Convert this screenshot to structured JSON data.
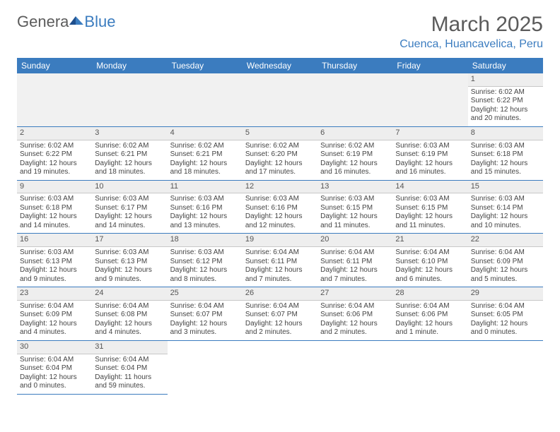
{
  "brand": {
    "part1": "Genera",
    "part2": "Blue"
  },
  "title": {
    "month": "March 2025",
    "location": "Cuenca, Huancavelica, Peru"
  },
  "colors": {
    "accent": "#3b7cbf",
    "header_bg": "#3b7cbf",
    "header_text": "#ffffff",
    "day_bg": "#eeeeee",
    "body_bg": "#ffffff"
  },
  "headers": [
    "Sunday",
    "Monday",
    "Tuesday",
    "Wednesday",
    "Thursday",
    "Friday",
    "Saturday"
  ],
  "weeks": [
    [
      null,
      null,
      null,
      null,
      null,
      null,
      {
        "n": "1",
        "sr": "Sunrise: 6:02 AM",
        "ss": "Sunset: 6:22 PM",
        "d1": "Daylight: 12 hours",
        "d2": "and 20 minutes."
      }
    ],
    [
      {
        "n": "2",
        "sr": "Sunrise: 6:02 AM",
        "ss": "Sunset: 6:22 PM",
        "d1": "Daylight: 12 hours",
        "d2": "and 19 minutes."
      },
      {
        "n": "3",
        "sr": "Sunrise: 6:02 AM",
        "ss": "Sunset: 6:21 PM",
        "d1": "Daylight: 12 hours",
        "d2": "and 18 minutes."
      },
      {
        "n": "4",
        "sr": "Sunrise: 6:02 AM",
        "ss": "Sunset: 6:21 PM",
        "d1": "Daylight: 12 hours",
        "d2": "and 18 minutes."
      },
      {
        "n": "5",
        "sr": "Sunrise: 6:02 AM",
        "ss": "Sunset: 6:20 PM",
        "d1": "Daylight: 12 hours",
        "d2": "and 17 minutes."
      },
      {
        "n": "6",
        "sr": "Sunrise: 6:02 AM",
        "ss": "Sunset: 6:19 PM",
        "d1": "Daylight: 12 hours",
        "d2": "and 16 minutes."
      },
      {
        "n": "7",
        "sr": "Sunrise: 6:03 AM",
        "ss": "Sunset: 6:19 PM",
        "d1": "Daylight: 12 hours",
        "d2": "and 16 minutes."
      },
      {
        "n": "8",
        "sr": "Sunrise: 6:03 AM",
        "ss": "Sunset: 6:18 PM",
        "d1": "Daylight: 12 hours",
        "d2": "and 15 minutes."
      }
    ],
    [
      {
        "n": "9",
        "sr": "Sunrise: 6:03 AM",
        "ss": "Sunset: 6:18 PM",
        "d1": "Daylight: 12 hours",
        "d2": "and 14 minutes."
      },
      {
        "n": "10",
        "sr": "Sunrise: 6:03 AM",
        "ss": "Sunset: 6:17 PM",
        "d1": "Daylight: 12 hours",
        "d2": "and 14 minutes."
      },
      {
        "n": "11",
        "sr": "Sunrise: 6:03 AM",
        "ss": "Sunset: 6:16 PM",
        "d1": "Daylight: 12 hours",
        "d2": "and 13 minutes."
      },
      {
        "n": "12",
        "sr": "Sunrise: 6:03 AM",
        "ss": "Sunset: 6:16 PM",
        "d1": "Daylight: 12 hours",
        "d2": "and 12 minutes."
      },
      {
        "n": "13",
        "sr": "Sunrise: 6:03 AM",
        "ss": "Sunset: 6:15 PM",
        "d1": "Daylight: 12 hours",
        "d2": "and 11 minutes."
      },
      {
        "n": "14",
        "sr": "Sunrise: 6:03 AM",
        "ss": "Sunset: 6:15 PM",
        "d1": "Daylight: 12 hours",
        "d2": "and 11 minutes."
      },
      {
        "n": "15",
        "sr": "Sunrise: 6:03 AM",
        "ss": "Sunset: 6:14 PM",
        "d1": "Daylight: 12 hours",
        "d2": "and 10 minutes."
      }
    ],
    [
      {
        "n": "16",
        "sr": "Sunrise: 6:03 AM",
        "ss": "Sunset: 6:13 PM",
        "d1": "Daylight: 12 hours",
        "d2": "and 9 minutes."
      },
      {
        "n": "17",
        "sr": "Sunrise: 6:03 AM",
        "ss": "Sunset: 6:13 PM",
        "d1": "Daylight: 12 hours",
        "d2": "and 9 minutes."
      },
      {
        "n": "18",
        "sr": "Sunrise: 6:03 AM",
        "ss": "Sunset: 6:12 PM",
        "d1": "Daylight: 12 hours",
        "d2": "and 8 minutes."
      },
      {
        "n": "19",
        "sr": "Sunrise: 6:04 AM",
        "ss": "Sunset: 6:11 PM",
        "d1": "Daylight: 12 hours",
        "d2": "and 7 minutes."
      },
      {
        "n": "20",
        "sr": "Sunrise: 6:04 AM",
        "ss": "Sunset: 6:11 PM",
        "d1": "Daylight: 12 hours",
        "d2": "and 7 minutes."
      },
      {
        "n": "21",
        "sr": "Sunrise: 6:04 AM",
        "ss": "Sunset: 6:10 PM",
        "d1": "Daylight: 12 hours",
        "d2": "and 6 minutes."
      },
      {
        "n": "22",
        "sr": "Sunrise: 6:04 AM",
        "ss": "Sunset: 6:09 PM",
        "d1": "Daylight: 12 hours",
        "d2": "and 5 minutes."
      }
    ],
    [
      {
        "n": "23",
        "sr": "Sunrise: 6:04 AM",
        "ss": "Sunset: 6:09 PM",
        "d1": "Daylight: 12 hours",
        "d2": "and 4 minutes."
      },
      {
        "n": "24",
        "sr": "Sunrise: 6:04 AM",
        "ss": "Sunset: 6:08 PM",
        "d1": "Daylight: 12 hours",
        "d2": "and 4 minutes."
      },
      {
        "n": "25",
        "sr": "Sunrise: 6:04 AM",
        "ss": "Sunset: 6:07 PM",
        "d1": "Daylight: 12 hours",
        "d2": "and 3 minutes."
      },
      {
        "n": "26",
        "sr": "Sunrise: 6:04 AM",
        "ss": "Sunset: 6:07 PM",
        "d1": "Daylight: 12 hours",
        "d2": "and 2 minutes."
      },
      {
        "n": "27",
        "sr": "Sunrise: 6:04 AM",
        "ss": "Sunset: 6:06 PM",
        "d1": "Daylight: 12 hours",
        "d2": "and 2 minutes."
      },
      {
        "n": "28",
        "sr": "Sunrise: 6:04 AM",
        "ss": "Sunset: 6:06 PM",
        "d1": "Daylight: 12 hours",
        "d2": "and 1 minute."
      },
      {
        "n": "29",
        "sr": "Sunrise: 6:04 AM",
        "ss": "Sunset: 6:05 PM",
        "d1": "Daylight: 12 hours",
        "d2": "and 0 minutes."
      }
    ],
    [
      {
        "n": "30",
        "sr": "Sunrise: 6:04 AM",
        "ss": "Sunset: 6:04 PM",
        "d1": "Daylight: 12 hours",
        "d2": "and 0 minutes."
      },
      {
        "n": "31",
        "sr": "Sunrise: 6:04 AM",
        "ss": "Sunset: 6:04 PM",
        "d1": "Daylight: 11 hours",
        "d2": "and 59 minutes."
      },
      null,
      null,
      null,
      null,
      null
    ]
  ]
}
